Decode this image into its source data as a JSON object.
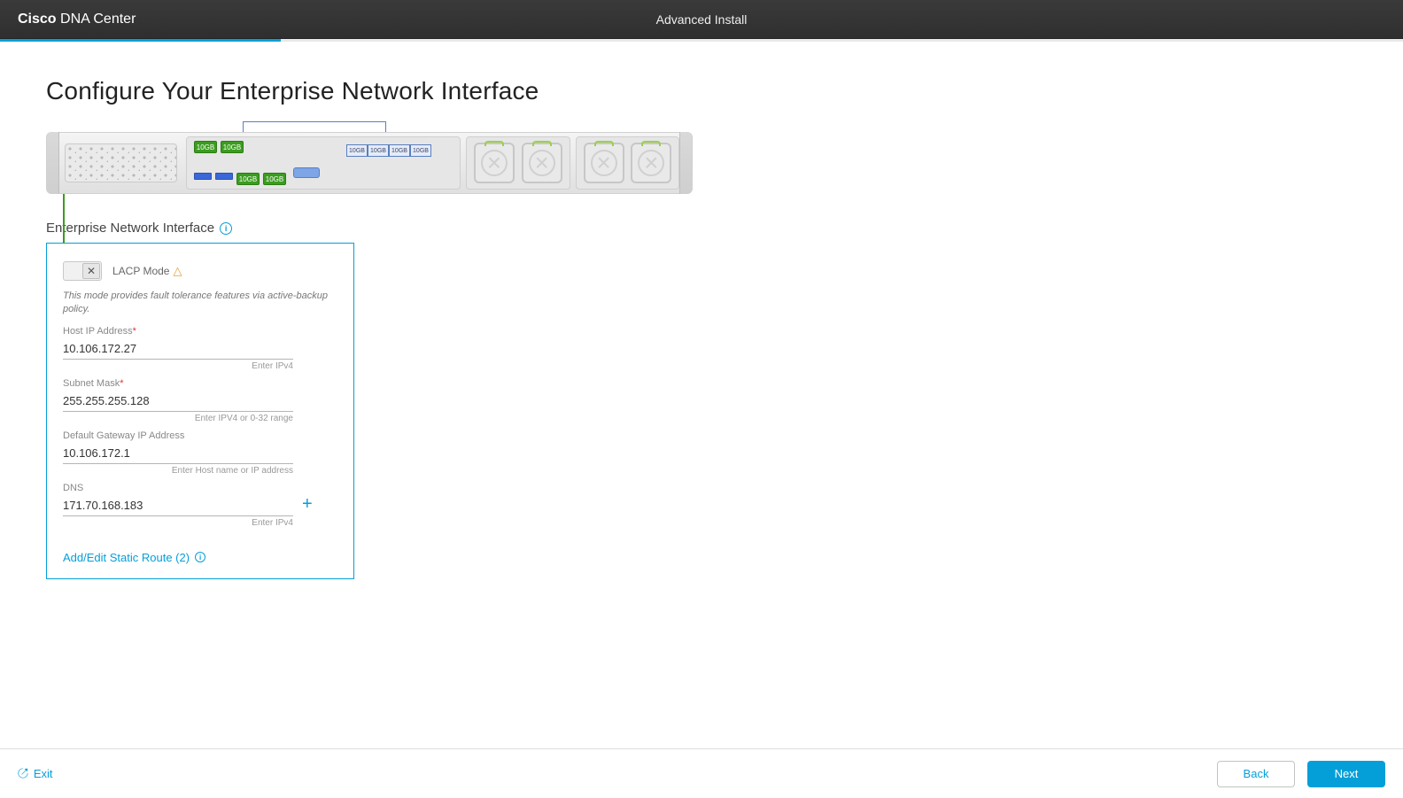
{
  "header": {
    "brand_bold": "Cisco",
    "brand_light": "DNA Center",
    "title": "Advanced Install",
    "progress_percent": 20
  },
  "page": {
    "title": "Configure Your Enterprise Network Interface",
    "section_title": "Enterprise Network Interface"
  },
  "diagram": {
    "port_label": "10GB",
    "colors": {
      "green": "#3b9c1f",
      "blue_border": "#5b7fbf",
      "highlight_line": "#3b9c1f"
    }
  },
  "card": {
    "lacp_label": "LACP Mode",
    "mode_desc": "This mode provides fault tolerance features via active-backup policy.",
    "fields": {
      "host_ip": {
        "label": "Host IP Address",
        "required": true,
        "value": "10.106.172.27",
        "hint": "Enter IPv4"
      },
      "subnet": {
        "label": "Subnet Mask",
        "required": true,
        "value": "255.255.255.128",
        "hint": "Enter IPV4 or 0-32 range"
      },
      "gateway": {
        "label": "Default Gateway IP Address",
        "required": false,
        "value": "10.106.172.1",
        "hint": "Enter Host name or IP address"
      },
      "dns": {
        "label": "DNS",
        "required": false,
        "value": "171.70.168.183",
        "hint": "Enter IPv4"
      }
    },
    "static_route_label": "Add/Edit Static Route (2)"
  },
  "footer": {
    "exit": "Exit",
    "back": "Back",
    "next": "Next"
  },
  "colors": {
    "accent": "#049fd9",
    "header_bg": "#333333"
  }
}
